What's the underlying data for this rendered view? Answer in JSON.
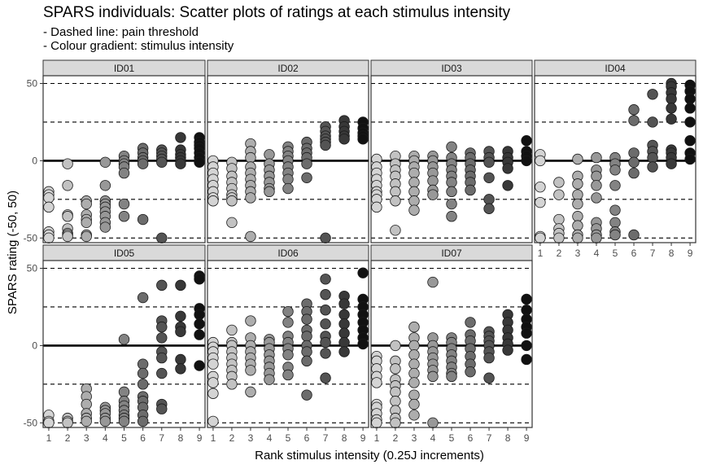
{
  "header": {
    "title": "SPARS individuals: Scatter plots of ratings at each stimulus intensity",
    "subtitle_1": "- Dashed line: pain threshold",
    "subtitle_2": "- Colour gradient: stimulus intensity"
  },
  "chart_data": {
    "type": "scatter",
    "title": "SPARS individuals: Scatter plots of ratings at each stimulus intensity",
    "xlabel": "Rank stimulus intensity (0.25J increments)",
    "ylabel": "SPARS rating (-50, 50)",
    "x_ticks": [
      1,
      2,
      3,
      4,
      5,
      6,
      7,
      8,
      9
    ],
    "y_ticks": [
      -50,
      0,
      50
    ],
    "xlim": [
      0.7,
      9.3
    ],
    "ylim": [
      -53,
      55
    ],
    "reference_lines": {
      "solid": [
        0
      ],
      "dashed": [
        -25,
        25,
        -50,
        50
      ]
    },
    "colour_gradient": [
      "#d4d4d4",
      "#c2c2c2",
      "#adadad",
      "#989898",
      "#838383",
      "#6c6c6c",
      "#545454",
      "#383838",
      "#111111"
    ],
    "panels": [
      {
        "label": "ID01",
        "points": [
          [
            1,
            [
              -20,
              -22,
              -24,
              -30,
              -46,
              -48,
              -50
            ]
          ],
          [
            2,
            [
              -2,
              -16,
              -35,
              -36,
              -44,
              -47,
              -48,
              -49
            ]
          ],
          [
            3,
            [
              -26,
              -28,
              -35,
              -38,
              -40,
              -48,
              -49
            ]
          ],
          [
            4,
            [
              -1,
              -16,
              -26,
              -28,
              -30,
              -33,
              -36,
              -40,
              -43
            ]
          ],
          [
            5,
            [
              3,
              0,
              -2,
              -4,
              -8,
              -28,
              -36
            ]
          ],
          [
            6,
            [
              8,
              5,
              2,
              0,
              -2,
              -38
            ]
          ],
          [
            7,
            [
              7,
              5,
              3,
              1,
              -1,
              -50
            ]
          ],
          [
            8,
            [
              15,
              7,
              4,
              2,
              0,
              -2
            ]
          ],
          [
            9,
            [
              15,
              12,
              10,
              8,
              5,
              2,
              -1
            ]
          ]
        ]
      },
      {
        "label": "ID02",
        "points": [
          [
            1,
            [
              0,
              -4,
              -8,
              -12,
              -16,
              -20,
              -24,
              -26
            ]
          ],
          [
            2,
            [
              -1,
              -5,
              -10,
              -14,
              -18,
              -22,
              -24,
              -26,
              -40
            ]
          ],
          [
            3,
            [
              11,
              6,
              2,
              -4,
              -8,
              -12,
              -16,
              -20,
              -24,
              -49
            ]
          ],
          [
            4,
            [
              4,
              -2,
              -6,
              -10,
              -14,
              -18,
              -20
            ]
          ],
          [
            5,
            [
              9,
              6,
              3,
              0,
              -4,
              -8,
              -12,
              -18
            ]
          ],
          [
            6,
            [
              12,
              8,
              5,
              2,
              -2,
              -11
            ]
          ],
          [
            7,
            [
              22,
              19,
              16,
              14,
              12,
              10,
              -50
            ]
          ],
          [
            8,
            [
              26,
              22,
              19,
              16,
              14
            ]
          ],
          [
            9,
            [
              25,
              21,
              18,
              16,
              14
            ]
          ]
        ]
      },
      {
        "label": "ID03",
        "points": [
          [
            1,
            [
              1,
              -4,
              -8,
              -12,
              -16,
              -20,
              -22,
              -25,
              -30
            ]
          ],
          [
            2,
            [
              3,
              -2,
              -6,
              -10,
              -15,
              -20,
              -26,
              -45
            ]
          ],
          [
            3,
            [
              3,
              0,
              -4,
              -8,
              -14,
              -20,
              -26,
              -32
            ]
          ],
          [
            4,
            [
              3,
              0,
              -4,
              -8,
              -13,
              -19,
              -22
            ]
          ],
          [
            5,
            [
              9,
              2,
              -2,
              -6,
              -10,
              -14,
              -20,
              -28,
              -36
            ]
          ],
          [
            6,
            [
              5,
              2,
              -2,
              -6,
              -10,
              -14,
              -19
            ]
          ],
          [
            7,
            [
              6,
              2,
              -1,
              -11,
              -25,
              -31
            ]
          ],
          [
            8,
            [
              6,
              2,
              -1,
              -5,
              -16
            ]
          ],
          [
            9,
            [
              13,
              6,
              3,
              0
            ]
          ]
        ]
      },
      {
        "label": "ID04",
        "points": [
          [
            1,
            [
              4,
              0,
              -17,
              -27,
              -49,
              -50
            ]
          ],
          [
            2,
            [
              -14,
              -22,
              -38,
              -44,
              -47,
              -50
            ]
          ],
          [
            3,
            [
              1,
              -10,
              -15,
              -22,
              -28,
              -36,
              -42,
              -48,
              -50
            ]
          ],
          [
            4,
            [
              2,
              -6,
              -10,
              -16,
              -24,
              -40,
              -44,
              -48,
              -50
            ]
          ],
          [
            5,
            [
              2,
              -2,
              -6,
              -16,
              -32,
              -40,
              -46,
              -48
            ]
          ],
          [
            6,
            [
              33,
              26,
              5,
              -1,
              -8,
              -48
            ]
          ],
          [
            7,
            [
              43,
              25,
              10,
              6,
              2,
              -4
            ]
          ],
          [
            8,
            [
              50,
              48,
              44,
              40,
              34,
              27,
              7,
              5,
              2,
              -2
            ]
          ],
          [
            9,
            [
              49,
              45,
              40,
              34,
              25,
              13,
              5,
              1
            ]
          ]
        ]
      },
      {
        "label": "ID05",
        "points": [
          [
            1,
            [
              -45,
              -49,
              -50
            ]
          ],
          [
            2,
            [
              -47,
              -49,
              -50
            ]
          ],
          [
            3,
            [
              -28,
              -33,
              -38,
              -44,
              -47,
              -49
            ]
          ],
          [
            4,
            [
              -40,
              -42,
              -44,
              -47,
              -49
            ]
          ],
          [
            5,
            [
              4,
              -30,
              -36,
              -39,
              -42,
              -45,
              -47,
              -49
            ]
          ],
          [
            6,
            [
              31,
              -12,
              -18,
              -25,
              -33,
              -36,
              -40,
              -45,
              -49
            ]
          ],
          [
            7,
            [
              39,
              16,
              12,
              5,
              -4,
              -8,
              -18,
              -38,
              -41
            ]
          ],
          [
            8,
            [
              39,
              19,
              12,
              9,
              -9,
              -15
            ]
          ],
          [
            9,
            [
              45,
              43,
              24,
              20,
              14,
              7,
              -13
            ]
          ]
        ]
      },
      {
        "label": "ID06",
        "points": [
          [
            1,
            [
              2,
              -1,
              -4,
              -8,
              -12,
              -20,
              -24,
              -31,
              -49
            ]
          ],
          [
            2,
            [
              10,
              2,
              0,
              -4,
              -8,
              -12,
              -16,
              -20,
              -25
            ]
          ],
          [
            3,
            [
              16,
              5,
              0,
              -4,
              -8,
              -12,
              -16,
              -30
            ]
          ],
          [
            4,
            [
              4,
              2,
              -2,
              -6,
              -10,
              -14,
              -18,
              -22
            ]
          ],
          [
            5,
            [
              22,
              15,
              6,
              2,
              -2,
              -6,
              -14,
              -19
            ]
          ],
          [
            6,
            [
              27,
              22,
              17,
              10,
              6,
              0,
              -4,
              -10,
              -32
            ]
          ],
          [
            7,
            [
              43,
              33,
              23,
              14,
              6,
              2,
              -5,
              -21
            ]
          ],
          [
            8,
            [
              32,
              27,
              20,
              14,
              8,
              2,
              -4
            ]
          ],
          [
            9,
            [
              47,
              30,
              25,
              20,
              15,
              10,
              5,
              1
            ]
          ]
        ]
      },
      {
        "label": "ID07",
        "points": [
          [
            1,
            [
              -7,
              -10,
              -15,
              -20,
              -24,
              -38,
              -40,
              -44,
              -48,
              -50
            ]
          ],
          [
            2,
            [
              0,
              -10,
              -15,
              -22,
              -26,
              -30,
              -36,
              -42,
              -47,
              -50
            ]
          ],
          [
            3,
            [
              12,
              5,
              0,
              -6,
              -12,
              -18,
              -24,
              -32,
              -38,
              -45
            ]
          ],
          [
            4,
            [
              41,
              5,
              0,
              -4,
              -8,
              -12,
              -16,
              -20,
              -50
            ]
          ],
          [
            5,
            [
              5,
              2,
              -2,
              -6,
              -10,
              -14,
              -18,
              -20
            ]
          ],
          [
            6,
            [
              15,
              7,
              3,
              -2,
              -7,
              -12,
              -17
            ]
          ],
          [
            7,
            [
              9,
              6,
              3,
              0,
              -4,
              -8,
              -21
            ]
          ],
          [
            8,
            [
              20,
              15,
              10,
              5,
              1,
              -3
            ]
          ],
          [
            9,
            [
              30,
              23,
              17,
              12,
              8,
              0,
              -9
            ]
          ]
        ]
      }
    ]
  }
}
